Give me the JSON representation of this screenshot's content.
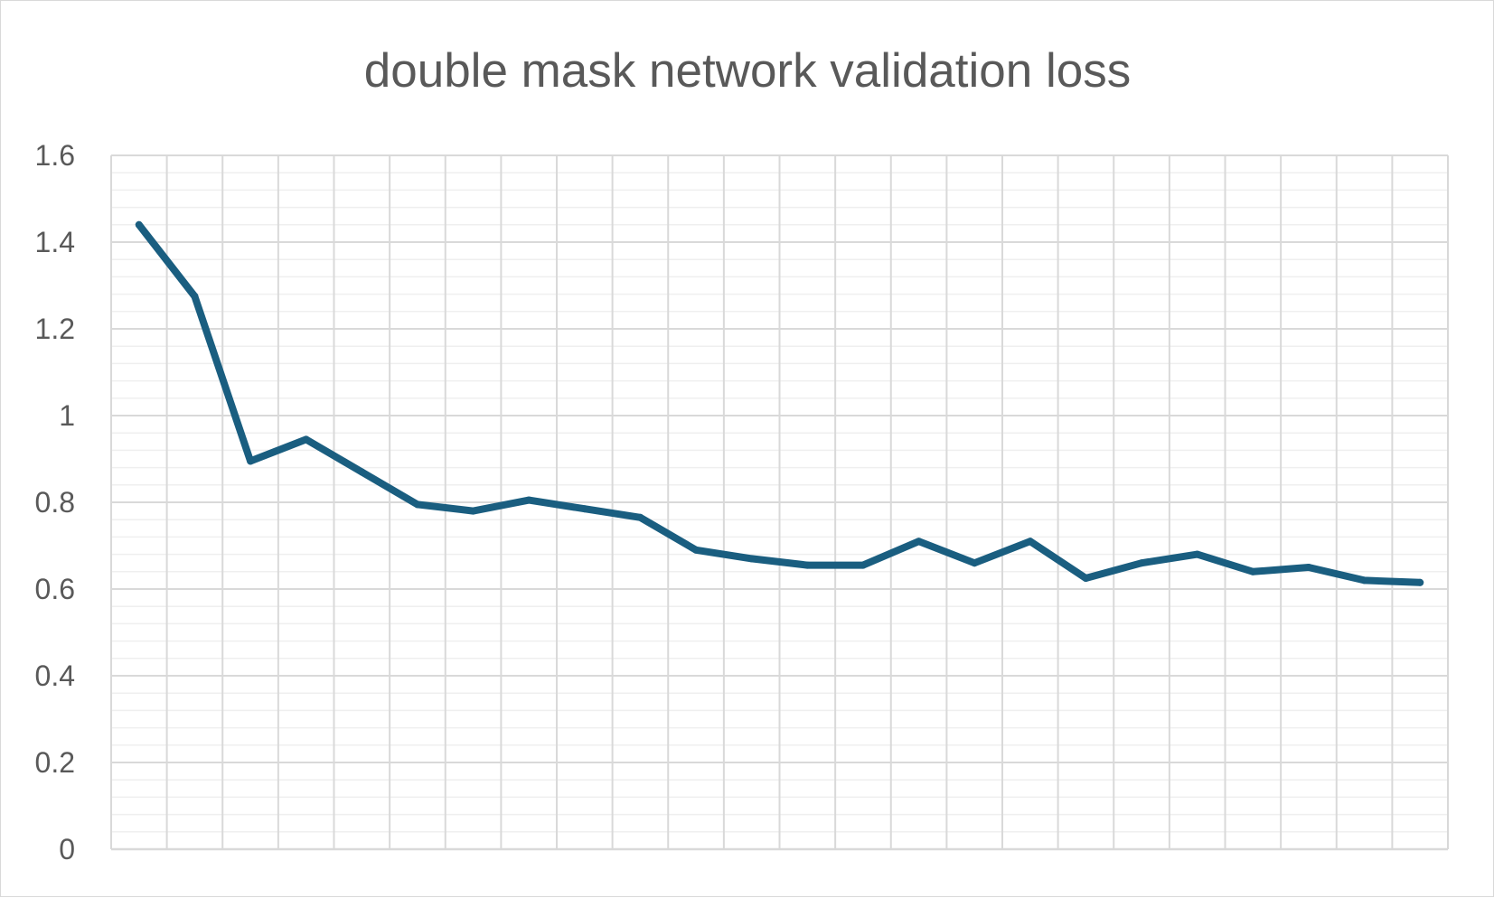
{
  "chart_data": {
    "type": "line",
    "title": "double mask network validation loss",
    "xlabel": "",
    "ylabel": "",
    "x": [
      1,
      2,
      3,
      4,
      5,
      6,
      7,
      8,
      9,
      10,
      11,
      12,
      13,
      14,
      15,
      16,
      17,
      18,
      19,
      20,
      21,
      22,
      23,
      24
    ],
    "series": [
      {
        "name": "",
        "color": "#1a5e80",
        "values": [
          1.44,
          1.275,
          0.895,
          0.945,
          0.87,
          0.795,
          0.78,
          0.805,
          0.785,
          0.765,
          0.69,
          0.67,
          0.655,
          0.655,
          0.71,
          0.66,
          0.71,
          0.625,
          0.66,
          0.68,
          0.64,
          0.65,
          0.62,
          0.615
        ]
      }
    ],
    "ylim": [
      0,
      1.6
    ],
    "yticks": [
      "0",
      "0.2",
      "0.4",
      "0.6",
      "0.8",
      "1",
      "1.2",
      "1.4",
      "1.6"
    ],
    "grid": true,
    "legend": "none"
  }
}
